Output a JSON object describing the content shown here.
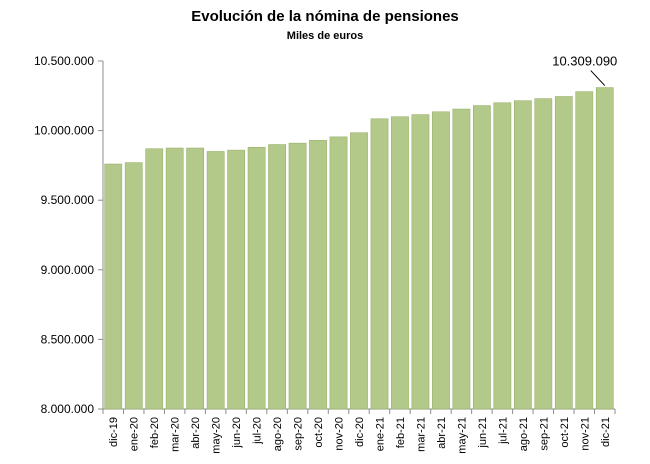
{
  "chart_data": {
    "type": "bar",
    "title": "Evolución de la nómina de pensiones",
    "subtitle": "Miles de euros",
    "xlabel": "",
    "ylabel": "",
    "ylim": [
      8000000,
      10500000
    ],
    "yticks": [
      8000000,
      8500000,
      9000000,
      9500000,
      10000000,
      10500000
    ],
    "ytick_labels": [
      "8.000.000",
      "8.500.000",
      "9.000.000",
      "9.500.000",
      "10.000.000",
      "10.500.000"
    ],
    "grid": false,
    "bar_color": "#b3c98a",
    "bar_edge_color": "#8faa5e",
    "categories": [
      "dic-19",
      "ene-20",
      "feb-20",
      "mar-20",
      "abr-20",
      "may-20",
      "jun-20",
      "jul-20",
      "ago-20",
      "sep-20",
      "oct-20",
      "nov-20",
      "dic-20",
      "ene-21",
      "feb-21",
      "mar-21",
      "abr-21",
      "may-21",
      "jun-21",
      "jul-21",
      "ago-21",
      "sep-21",
      "oct-21",
      "nov-21",
      "dic-21"
    ],
    "values": [
      9760000,
      9770000,
      9870000,
      9875000,
      9875000,
      9850000,
      9860000,
      9880000,
      9900000,
      9910000,
      9930000,
      9955000,
      9985000,
      10085000,
      10100000,
      10115000,
      10135000,
      10155000,
      10180000,
      10200000,
      10215000,
      10230000,
      10245000,
      10280000,
      10309090
    ],
    "annotation": {
      "text": "10.309.090",
      "category": "dic-21"
    }
  }
}
